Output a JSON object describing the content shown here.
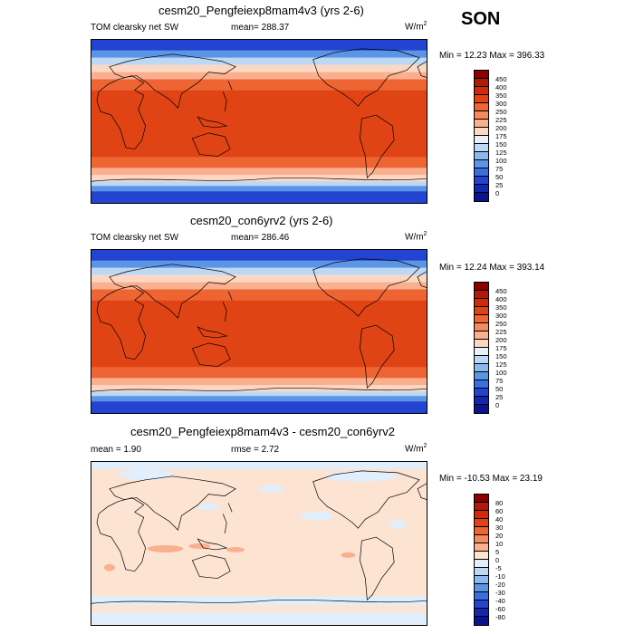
{
  "season": "SON",
  "panels": [
    {
      "title": "cesm20_Pengfeiexp8mam4v3 (yrs 2-6)",
      "left_label": "TOM clearsky net SW",
      "center_label": "mean=  288.37",
      "unit": "W/m",
      "unit_sup": "2",
      "minmax": "Min =  12.23 Max = 396.33",
      "colorbar_labels": [
        "450",
        "400",
        "350",
        "300",
        "250",
        "225",
        "200",
        "175",
        "150",
        "125",
        "100",
        "75",
        "50",
        "25",
        "0"
      ],
      "colorbar_colors": [
        "#8b0000",
        "#b01a0a",
        "#d0290b",
        "#e04414",
        "#ee6433",
        "#f58a5e",
        "#fab08e",
        "#fdd7c2",
        "#e8f1fb",
        "#bcd8f5",
        "#8ab8ef",
        "#5b95e6",
        "#3a6fe0",
        "#2244d0",
        "#1226b0",
        "#0a1390"
      ]
    },
    {
      "title": "cesm20_con6yrv2 (yrs 2-6)",
      "left_label": "TOM clearsky net SW",
      "center_label": "mean=  286.46",
      "unit": "W/m",
      "unit_sup": "2",
      "minmax": "Min =  12.24 Max = 393.14",
      "colorbar_labels": [
        "450",
        "400",
        "350",
        "300",
        "250",
        "225",
        "200",
        "175",
        "150",
        "125",
        "100",
        "75",
        "50",
        "25",
        "0"
      ],
      "colorbar_colors": [
        "#8b0000",
        "#b01a0a",
        "#d0290b",
        "#e04414",
        "#ee6433",
        "#f58a5e",
        "#fab08e",
        "#fdd7c2",
        "#e8f1fb",
        "#bcd8f5",
        "#8ab8ef",
        "#5b95e6",
        "#3a6fe0",
        "#2244d0",
        "#1226b0",
        "#0a1390"
      ]
    },
    {
      "title": "cesm20_Pengfeiexp8mam4v3 - cesm20_con6yrv2",
      "left_label": "mean =   1.90",
      "center_label": "rmse =   2.72",
      "unit": "W/m",
      "unit_sup": "2",
      "minmax": "Min = -10.53 Max =  23.19",
      "colorbar_labels": [
        "80",
        "60",
        "40",
        "30",
        "20",
        "10",
        "5",
        "0",
        "-5",
        "-10",
        "-20",
        "-30",
        "-40",
        "-60",
        "-80"
      ],
      "colorbar_colors": [
        "#8b0000",
        "#b01a0a",
        "#d0290b",
        "#e04414",
        "#ee6433",
        "#f58a5e",
        "#fab08e",
        "#fde3d2",
        "#e1eefb",
        "#bcd8f5",
        "#8ab8ef",
        "#5b95e6",
        "#3a6fe0",
        "#2244d0",
        "#1226b0",
        "#0a1390"
      ]
    }
  ]
}
